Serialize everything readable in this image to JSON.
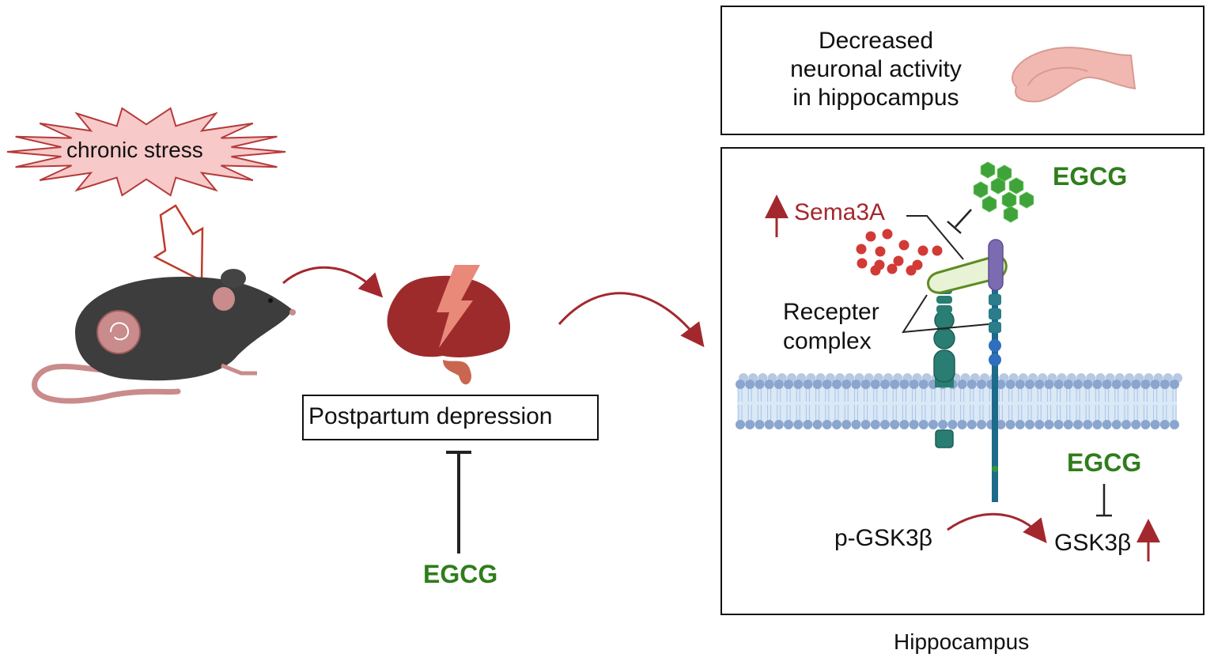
{
  "left": {
    "stress_label": "chronic stress",
    "disease_label": "Postpartum depression",
    "treatment_label": "EGCG"
  },
  "top_box": {
    "lines": [
      "Decreased",
      "neuronal activity",
      "in hippocampus"
    ]
  },
  "mechanism": {
    "egcg_top": "EGCG",
    "sema3a": "Sema3A",
    "receptor_lines": [
      "Recepter",
      "complex"
    ],
    "egcg_bottom": "EGCG",
    "p_gsk": "p-GSK3β",
    "gsk": "GSK3β",
    "caption": "Hippocampus"
  },
  "colors": {
    "green": "#2f7d1b",
    "red": "#a3282e",
    "brain": "#9e2b2b",
    "stress_fill": "#f7c9c9",
    "hippocampus_fill": "#f0b8b0",
    "membrane": "#8aa6cf"
  }
}
